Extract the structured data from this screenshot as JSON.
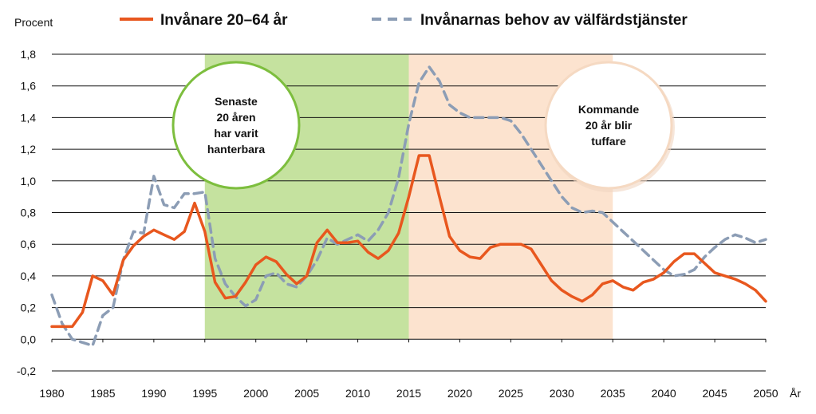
{
  "chart_data": {
    "type": "line",
    "ylabel": "Procent",
    "xlabel": "År",
    "ylim": [
      -0.2,
      1.8
    ],
    "xlim": [
      1980,
      2050
    ],
    "y_ticks": [
      "1,8",
      "1,6",
      "1,4",
      "1,2",
      "1,0",
      "0,8",
      "0,6",
      "0,4",
      "0,2",
      "0,0",
      "-0,2"
    ],
    "x_ticks": [
      "1980",
      "1985",
      "1990",
      "1995",
      "2000",
      "2005",
      "2010",
      "2015",
      "2020",
      "2025",
      "2030",
      "2035",
      "2040",
      "2045",
      "2050"
    ],
    "grid": "horizontal",
    "legend_position": "top",
    "series": [
      {
        "name": "Invånare 20–64 år",
        "color": "#E8571E",
        "style": "solid",
        "x": [
          1980,
          1981,
          1982,
          1983,
          1984,
          1985,
          1986,
          1987,
          1988,
          1989,
          1990,
          1991,
          1992,
          1993,
          1994,
          1995,
          1996,
          1997,
          1998,
          1999,
          2000,
          2001,
          2002,
          2003,
          2004,
          2005,
          2006,
          2007,
          2008,
          2009,
          2010,
          2011,
          2012,
          2013,
          2014,
          2015,
          2016,
          2017,
          2018,
          2019,
          2020,
          2021,
          2022,
          2023,
          2024,
          2025,
          2026,
          2027,
          2028,
          2029,
          2030,
          2031,
          2032,
          2033,
          2034,
          2035,
          2036,
          2037,
          2038,
          2039,
          2040,
          2041,
          2042,
          2043,
          2044,
          2045,
          2046,
          2047,
          2048,
          2049,
          2050
        ],
        "y": [
          0.08,
          0.08,
          0.08,
          0.17,
          0.4,
          0.37,
          0.28,
          0.5,
          0.59,
          0.65,
          0.69,
          0.66,
          0.63,
          0.68,
          0.86,
          0.68,
          0.36,
          0.26,
          0.27,
          0.36,
          0.47,
          0.52,
          0.49,
          0.41,
          0.35,
          0.4,
          0.61,
          0.69,
          0.61,
          0.61,
          0.62,
          0.55,
          0.51,
          0.56,
          0.67,
          0.9,
          1.16,
          1.16,
          0.9,
          0.65,
          0.56,
          0.52,
          0.51,
          0.58,
          0.6,
          0.6,
          0.6,
          0.57,
          0.47,
          0.37,
          0.31,
          0.27,
          0.24,
          0.28,
          0.35,
          0.37,
          0.33,
          0.31,
          0.36,
          0.38,
          0.42,
          0.49,
          0.54,
          0.54,
          0.48,
          0.42,
          0.4,
          0.38,
          0.35,
          0.31,
          0.24
        ]
      },
      {
        "name": "Invånarnas behov av välfärdstjänster",
        "color": "#8C9DB5",
        "style": "dashed",
        "x": [
          1980,
          1981,
          1982,
          1983,
          1984,
          1985,
          1986,
          1987,
          1988,
          1989,
          1990,
          1991,
          1992,
          1993,
          1994,
          1995,
          1996,
          1997,
          1998,
          1999,
          2000,
          2001,
          2002,
          2003,
          2004,
          2005,
          2006,
          2007,
          2008,
          2009,
          2010,
          2011,
          2012,
          2013,
          2014,
          2015,
          2016,
          2017,
          2018,
          2019,
          2020,
          2021,
          2022,
          2023,
          2024,
          2025,
          2026,
          2027,
          2028,
          2029,
          2030,
          2031,
          2032,
          2033,
          2034,
          2035,
          2036,
          2037,
          2038,
          2039,
          2040,
          2041,
          2042,
          2043,
          2044,
          2045,
          2046,
          2047,
          2048,
          2049,
          2050
        ],
        "y": [
          0.28,
          0.1,
          0.0,
          -0.02,
          -0.04,
          0.15,
          0.2,
          0.5,
          0.68,
          0.67,
          1.03,
          0.85,
          0.83,
          0.92,
          0.92,
          0.93,
          0.51,
          0.35,
          0.27,
          0.21,
          0.25,
          0.4,
          0.42,
          0.35,
          0.33,
          0.4,
          0.5,
          0.64,
          0.6,
          0.63,
          0.66,
          0.62,
          0.69,
          0.8,
          1.02,
          1.36,
          1.62,
          1.72,
          1.63,
          1.48,
          1.43,
          1.4,
          1.4,
          1.4,
          1.4,
          1.38,
          1.3,
          1.2,
          1.1,
          1.0,
          0.9,
          0.83,
          0.8,
          0.81,
          0.8,
          0.74,
          0.68,
          0.62,
          0.56,
          0.5,
          0.44,
          0.4,
          0.41,
          0.44,
          0.52,
          0.58,
          0.63,
          0.66,
          0.64,
          0.61,
          0.63
        ]
      }
    ],
    "shaded_regions": [
      {
        "from": 1995,
        "to": 2015,
        "color": "#C5E29F"
      },
      {
        "from": 2015,
        "to": 2035,
        "color": "#FCE3CF"
      }
    ],
    "annotations": [
      {
        "id": "past",
        "lines": [
          "Senaste",
          "20 åren",
          "har varit",
          "hanterbara"
        ],
        "border_color": "#7DBE3E"
      },
      {
        "id": "future",
        "lines": [
          "Kommande",
          "20 år blir",
          "tuffare"
        ],
        "border_color": "#F5D9C2"
      }
    ]
  }
}
